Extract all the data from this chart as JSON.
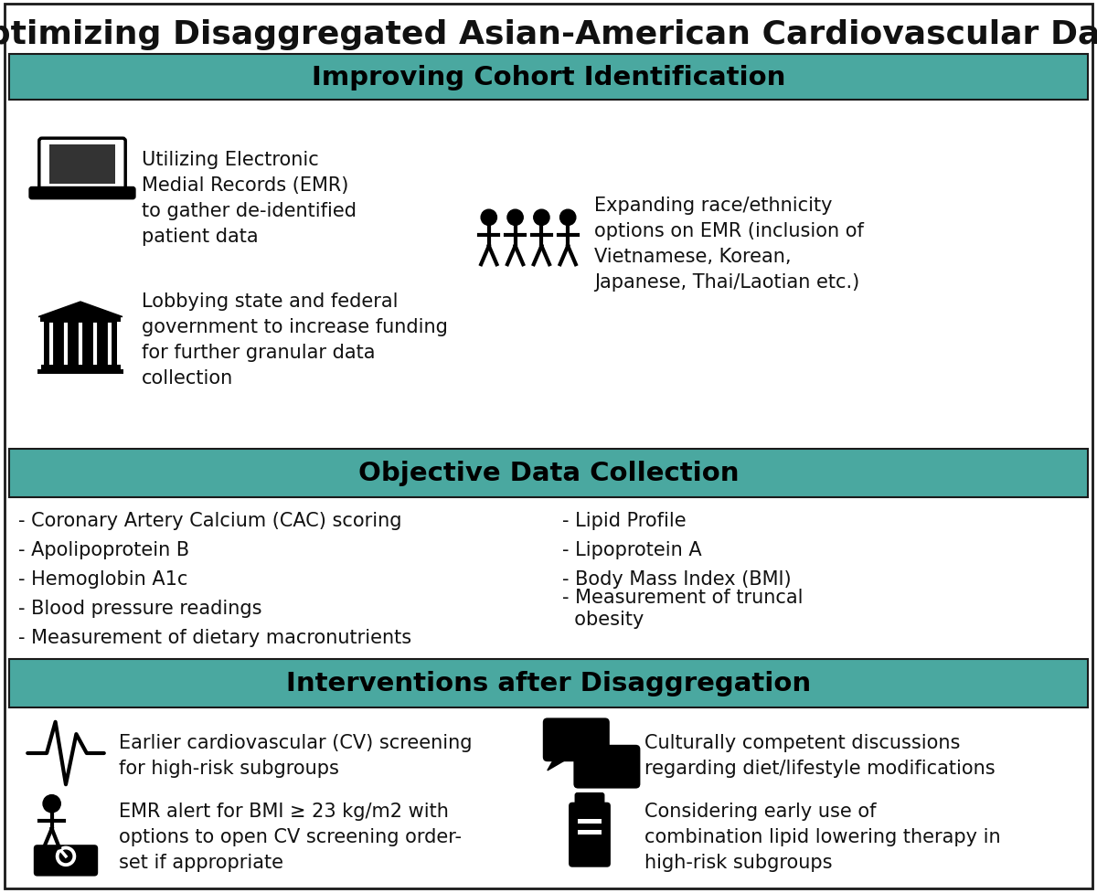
{
  "title": "Optimizing Disaggregated Asian-American Cardiovascular Data",
  "title_fontsize": 26,
  "bg_color": "#ffffff",
  "teal_color": "#4aA8A0",
  "section_headers": [
    "Improving Cohort Identification",
    "Objective Data Collection",
    "Interventions after Disaggregation"
  ],
  "section_header_fontsize": 21,
  "section1_items_left": [
    "Utilizing Electronic\nMedial Records (EMR)\nto gather de-identified\npatient data",
    "Lobbying state and federal\ngovernment to increase funding\nfor further granular data\ncollection"
  ],
  "section1_item_right": "Expanding race/ethnicity\noptions on EMR (inclusion of\nVietnamese, Korean,\nJapanese, Thai/Laotian etc.)",
  "section2_left": [
    "- Coronary Artery Calcium (CAC) scoring",
    "- Apolipoprotein B",
    "- Hemoglobin A1c",
    "- Blood pressure readings",
    "- Measurement of dietary macronutrients"
  ],
  "section2_right": [
    "- Lipid Profile",
    "- Lipoprotein A",
    "- Body Mass Index (BMI)",
    "- Measurement of truncal\n  obesity"
  ],
  "section3_left_texts": [
    "Earlier cardiovascular (CV) screening\nfor high-risk subgroups",
    "EMR alert for BMI ≥ 23 kg/m2 with\noptions to open CV screening order-\nset if appropriate"
  ],
  "section3_right_texts": [
    "Culturally competent discussions\nregarding diet/lifestyle modifications",
    "Considering early use of\ncombination lipid lowering therapy in\nhigh-risk subgroups"
  ],
  "body_fontsize": 15,
  "border_color": "#1a1a1a",
  "text_color": "#111111"
}
